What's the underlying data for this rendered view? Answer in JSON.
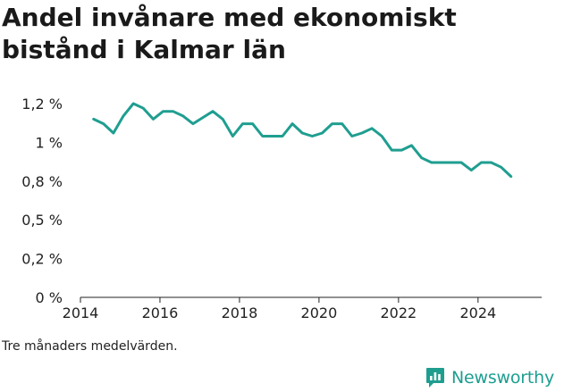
{
  "chart_data": {
    "type": "line",
    "title": "Andel invånare med ekonomiskt bistånd i Kalmar län",
    "xlabel": "",
    "ylabel": "",
    "xlim": [
      2014.0,
      2025.6
    ],
    "ylim": [
      0,
      1.25
    ],
    "x_ticks": [
      2014,
      2016,
      2018,
      2020,
      2022,
      2024
    ],
    "y_ticks": [
      {
        "value": 0,
        "label": "0 %"
      },
      {
        "value": 0.25,
        "label": "0,2 %"
      },
      {
        "value": 0.5,
        "label": "0,5 %"
      },
      {
        "value": 0.75,
        "label": "0,8 %"
      },
      {
        "value": 1.0,
        "label": "1 %"
      },
      {
        "value": 1.25,
        "label": "1,2 %"
      }
    ],
    "grid": false,
    "line_color": "#1f9e90",
    "series": [
      {
        "x": [
          2014.33,
          2014.58,
          2014.83,
          2015.08,
          2015.33,
          2015.58,
          2015.83,
          2016.08,
          2016.33,
          2016.58,
          2016.83,
          2017.08,
          2017.33,
          2017.58,
          2017.83,
          2018.08,
          2018.33,
          2018.58,
          2018.83,
          2019.08,
          2019.33,
          2019.58,
          2019.83,
          2020.08,
          2020.33,
          2020.58,
          2020.83,
          2021.08,
          2021.33,
          2021.58,
          2021.83,
          2022.08,
          2022.33,
          2022.58,
          2022.83,
          2023.08,
          2023.33,
          2023.58,
          2023.83,
          2024.08,
          2024.33,
          2024.58,
          2024.83
        ],
        "values": [
          1.15,
          1.12,
          1.06,
          1.17,
          1.25,
          1.22,
          1.15,
          1.2,
          1.2,
          1.17,
          1.12,
          1.16,
          1.2,
          1.15,
          1.04,
          1.12,
          1.12,
          1.04,
          1.04,
          1.04,
          1.12,
          1.06,
          1.04,
          1.06,
          1.12,
          1.12,
          1.04,
          1.06,
          1.09,
          1.04,
          0.95,
          0.95,
          0.98,
          0.9,
          0.87,
          0.87,
          0.87,
          0.87,
          0.82,
          0.87,
          0.87,
          0.84,
          0.78
        ]
      }
    ]
  },
  "footnote": "Tre månaders medelvärden.",
  "brand": {
    "name": "Newsworthy",
    "icon": "newsworthy-logo-icon",
    "color": "#1f9e90"
  }
}
